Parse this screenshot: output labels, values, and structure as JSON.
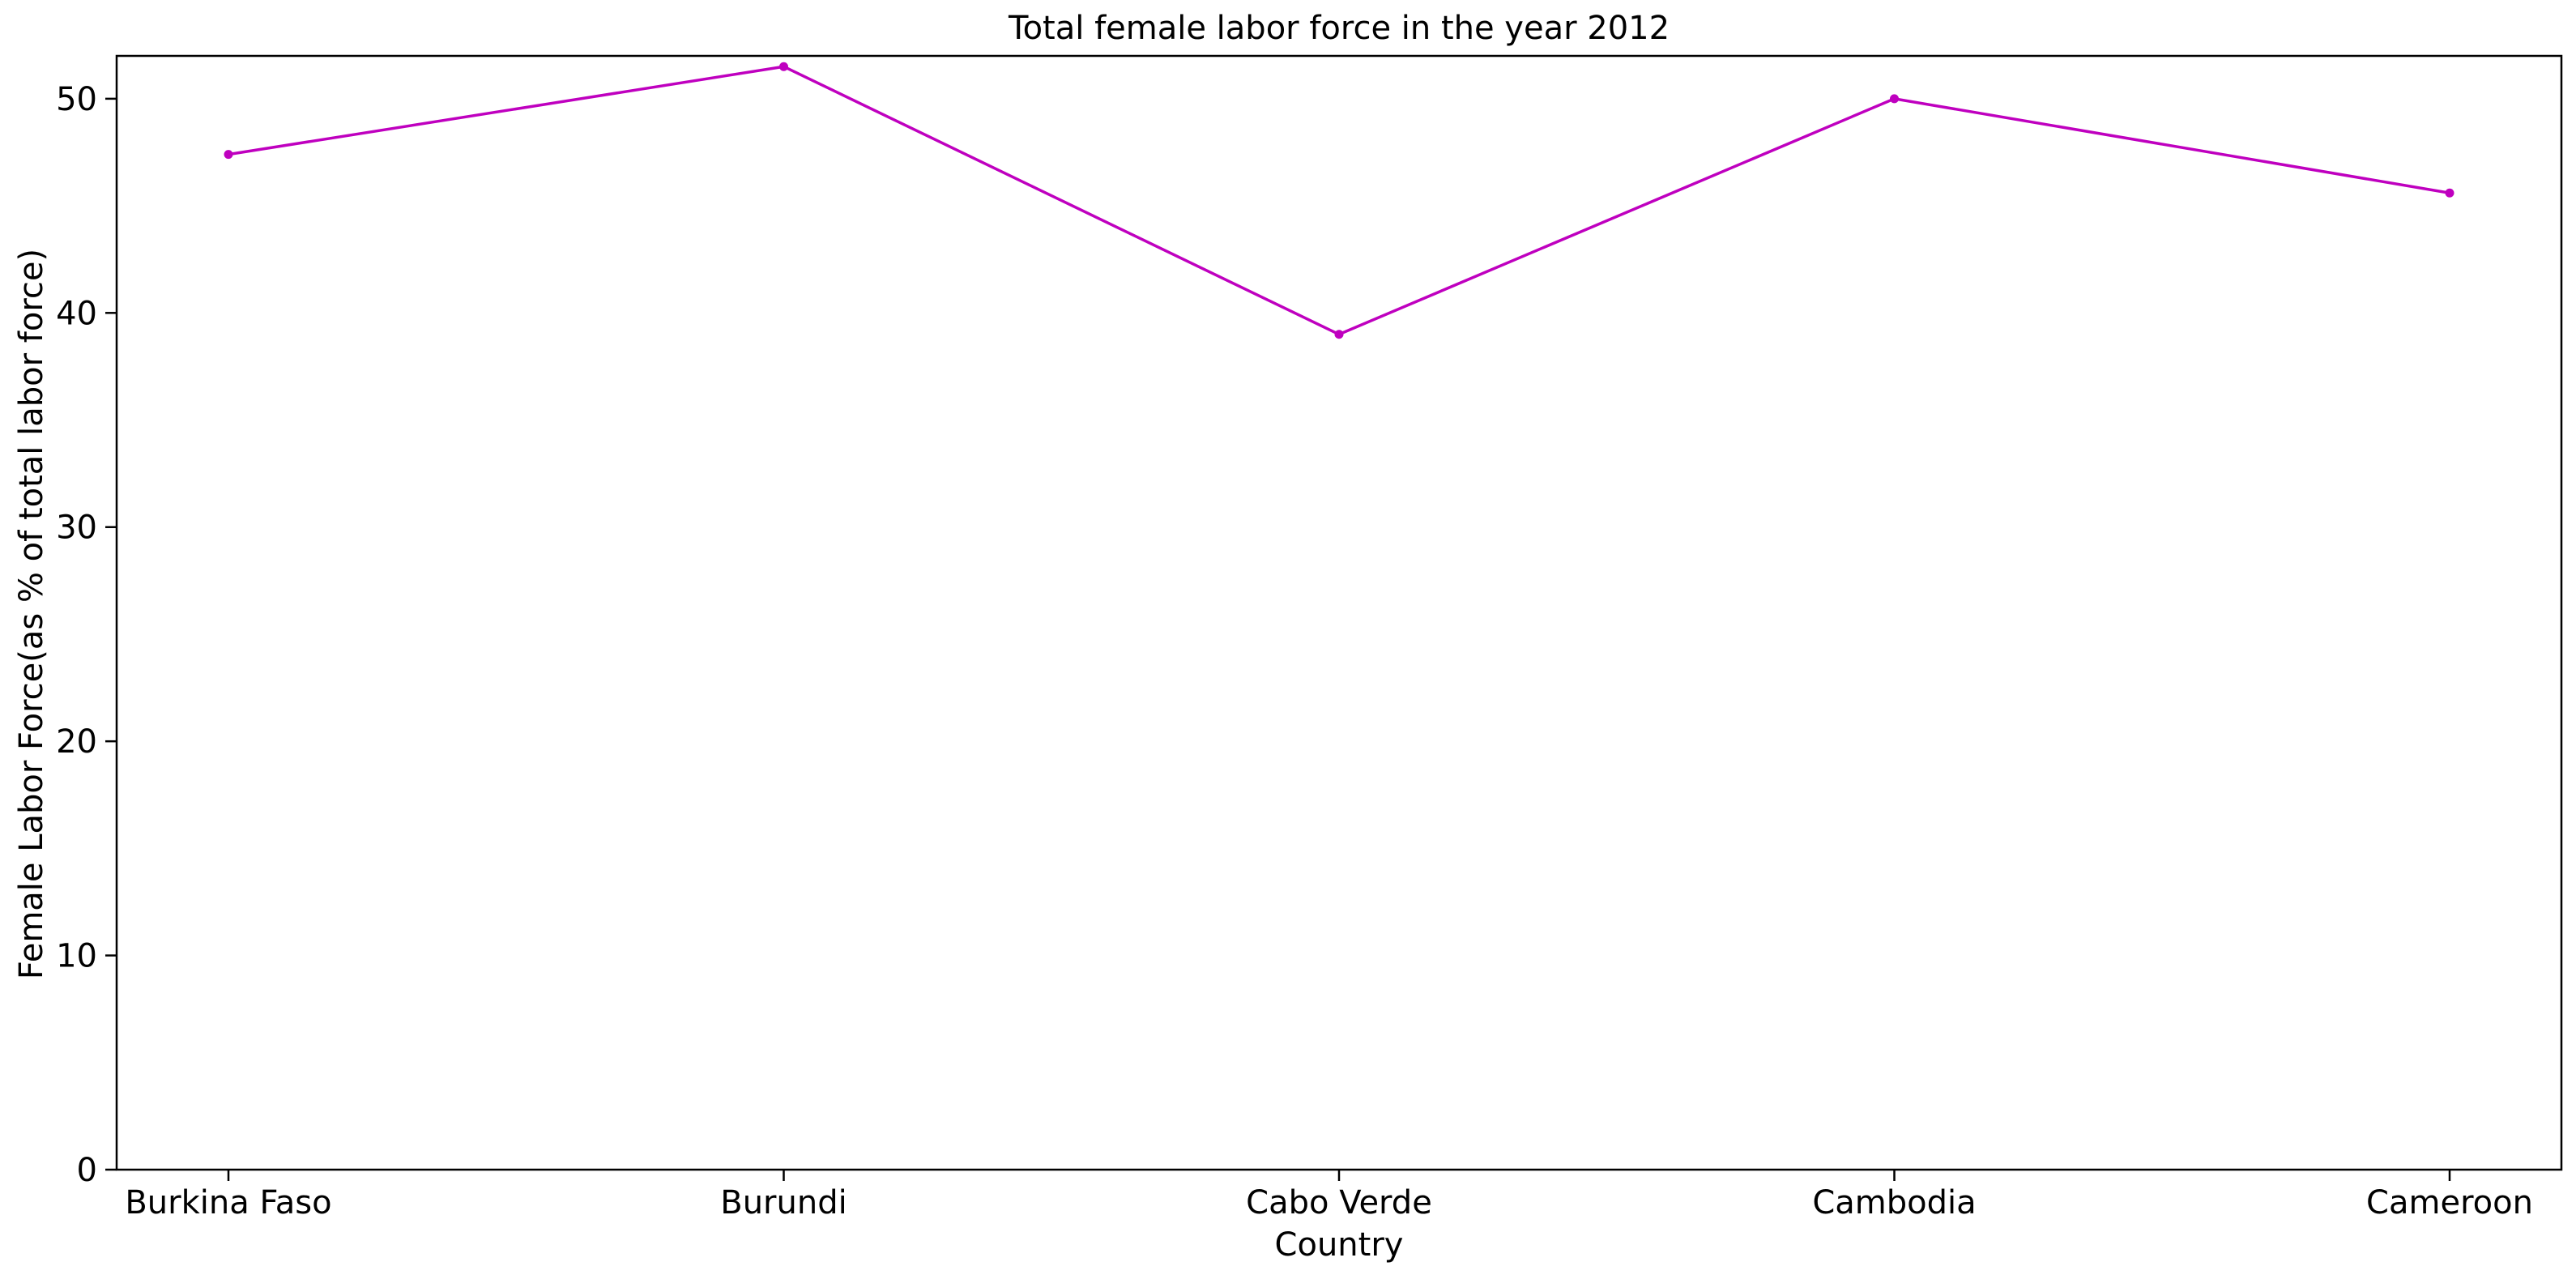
{
  "chart_data": {
    "type": "line",
    "title": "Total female labor force in the year 2012",
    "xlabel": "Country",
    "ylabel": "Female Labor Force(as % of total labor force)",
    "categories": [
      "Burkina Faso",
      "Burundi",
      "Cabo Verde",
      "Cambodia",
      "Cameroon"
    ],
    "series": [
      {
        "values": [
          47.4,
          51.5,
          39.0,
          50.0,
          45.6
        ]
      }
    ],
    "ylim": [
      0,
      52
    ],
    "yticks": [
      0,
      10,
      20,
      30,
      40,
      50
    ],
    "grid": false,
    "line_color": "#bf00bf"
  }
}
